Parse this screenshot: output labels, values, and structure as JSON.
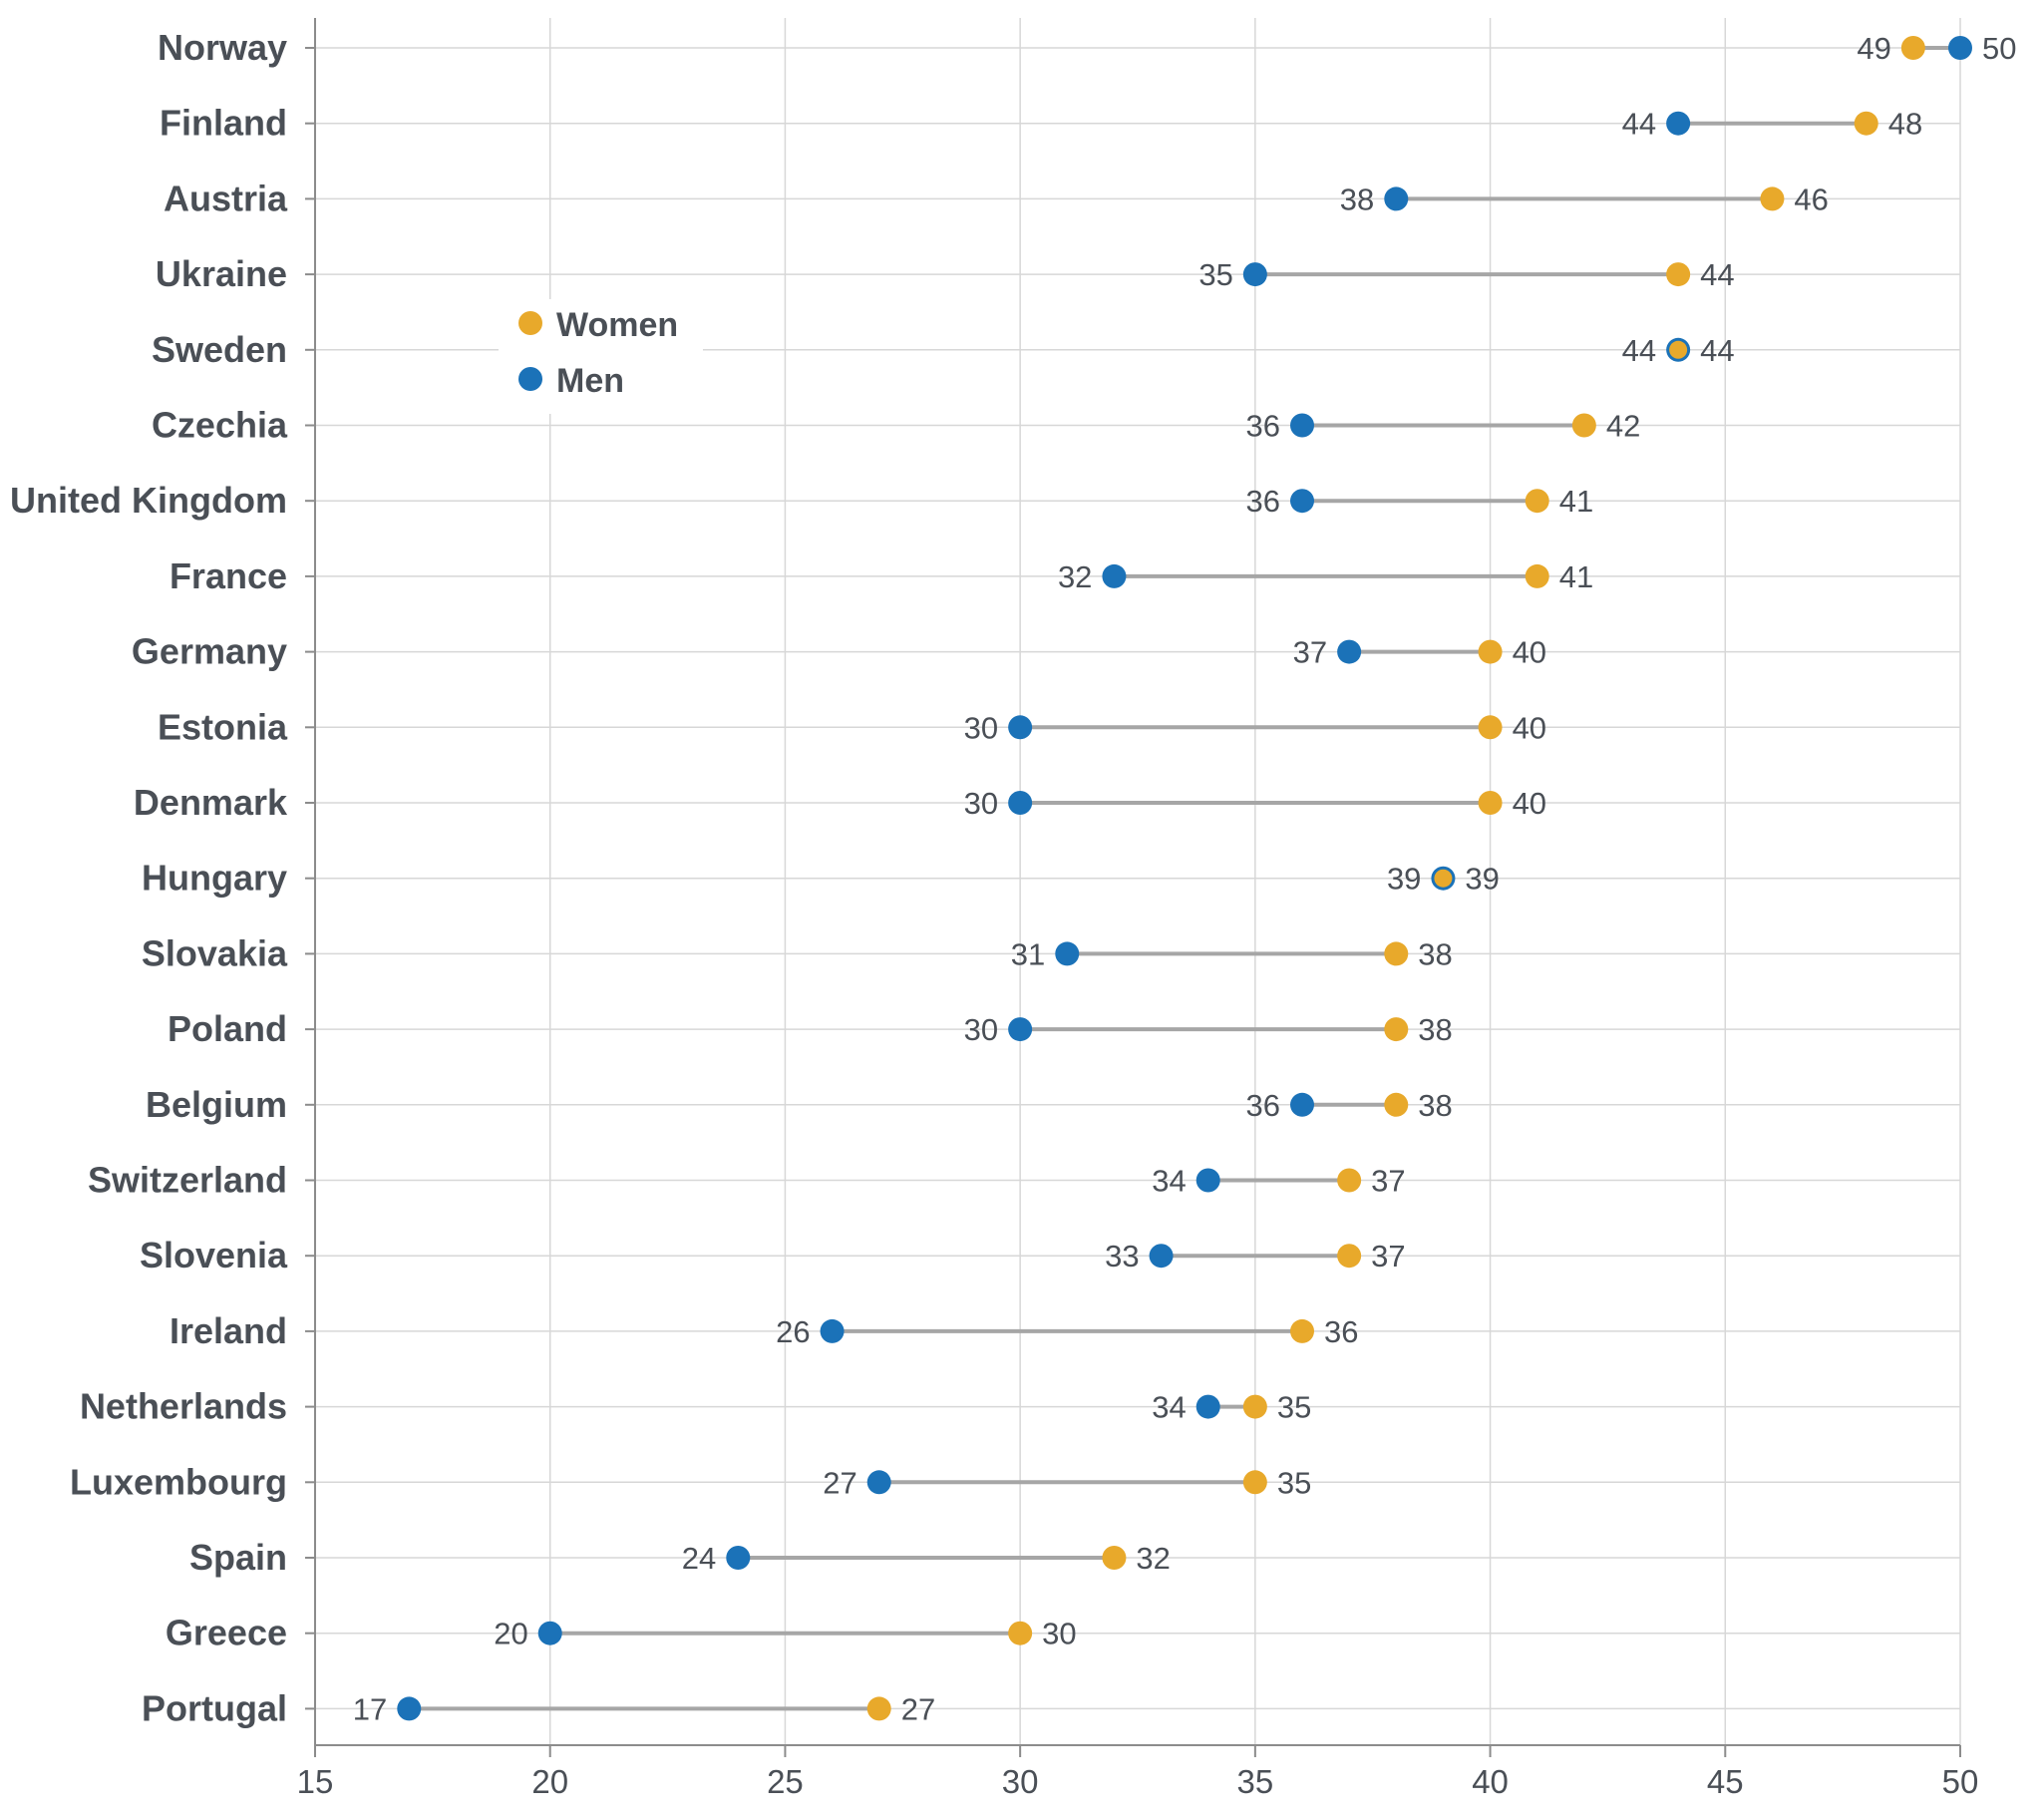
{
  "chart_data": {
    "type": "dumbbell",
    "categories": [
      "Norway",
      "Finland",
      "Austria",
      "Ukraine",
      "Sweden",
      "Czechia",
      "United Kingdom",
      "France",
      "Germany",
      "Estonia",
      "Denmark",
      "Hungary",
      "Slovakia",
      "Poland",
      "Belgium",
      "Switzerland",
      "Slovenia",
      "Ireland",
      "Netherlands",
      "Luxembourg",
      "Spain",
      "Greece",
      "Portugal"
    ],
    "series": [
      {
        "name": "Women",
        "color": "#e8a92b",
        "values": [
          49,
          48,
          46,
          44,
          44,
          42,
          41,
          41,
          40,
          40,
          40,
          39,
          38,
          38,
          38,
          37,
          37,
          36,
          35,
          35,
          32,
          30,
          27
        ]
      },
      {
        "name": "Men",
        "color": "#1b72b8",
        "values": [
          50,
          44,
          38,
          35,
          44,
          36,
          36,
          32,
          37,
          30,
          30,
          39,
          31,
          30,
          36,
          34,
          33,
          26,
          34,
          27,
          24,
          20,
          17
        ]
      }
    ],
    "x_ticks": [
      "15",
      "20",
      "25",
      "30",
      "35",
      "40",
      "45",
      "50"
    ],
    "xlim": [
      15,
      50
    ],
    "grid": true,
    "legend": {
      "position": "upper-left",
      "entries": [
        "Women",
        "Men"
      ]
    },
    "connector_color": "#a6a6a6"
  }
}
